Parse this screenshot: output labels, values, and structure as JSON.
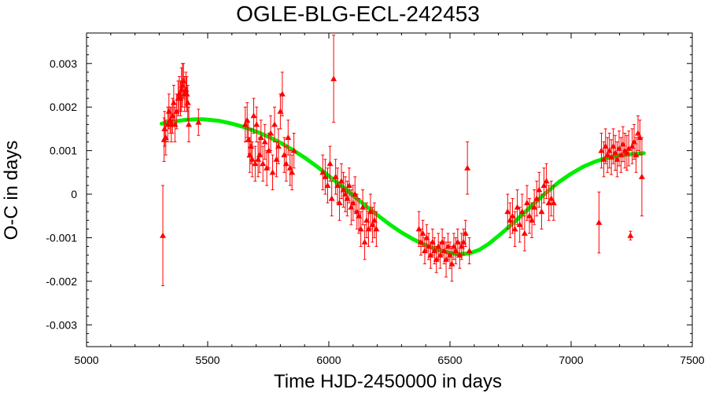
{
  "chart_data": {
    "type": "scatter",
    "title": "OGLE-BLG-ECL-242453",
    "xlabel": "Time HJD-2450000 in days",
    "ylabel": "O-C in days",
    "xlim": [
      5000,
      7500
    ],
    "ylim": [
      -0.0035,
      0.0037
    ],
    "xticks": [
      5000,
      5500,
      6000,
      6500,
      7000,
      7500
    ],
    "xtick_labels": [
      "5000",
      "5500",
      "6000",
      "6500",
      "7000",
      "7500"
    ],
    "yticks": [
      -0.003,
      -0.002,
      -0.001,
      0,
      0.001,
      0.002,
      0.003
    ],
    "ytick_labels": [
      "-0.003",
      "-0.002",
      "-0.001",
      "0",
      "0.001",
      "0.002",
      "0.003"
    ],
    "grid": false,
    "legend": "none",
    "colors": {
      "points": "#ff0000",
      "model": "#00ee00",
      "axes": "#000000"
    },
    "series": [
      {
        "kind": "points_with_errorbars",
        "x": [
          5315,
          5320,
          5322,
          5327,
          5335,
          5340,
          5345,
          5350,
          5355,
          5360,
          5365,
          5372,
          5378,
          5383,
          5388,
          5392,
          5396,
          5400,
          5405,
          5410,
          5414,
          5418,
          5422,
          5462,
          5655,
          5663,
          5668,
          5674,
          5679,
          5684,
          5690,
          5696,
          5702,
          5708,
          5714,
          5720,
          5728,
          5736,
          5744,
          5752,
          5760,
          5768,
          5776,
          5784,
          5792,
          5800,
          5808,
          5816,
          5824,
          5832,
          5840,
          5848,
          5856,
          5975,
          5985,
          5995,
          6005,
          6012,
          6020,
          6028,
          6036,
          6044,
          6052,
          6060,
          6068,
          6076,
          6084,
          6092,
          6100,
          6108,
          6116,
          6124,
          6132,
          6140,
          6148,
          6156,
          6164,
          6172,
          6180,
          6188,
          6196,
          6372,
          6380,
          6388,
          6396,
          6404,
          6412,
          6420,
          6428,
          6436,
          6444,
          6452,
          6460,
          6468,
          6476,
          6484,
          6492,
          6500,
          6508,
          6516,
          6524,
          6532,
          6540,
          6548,
          6556,
          6564,
          6572,
          6580,
          6738,
          6748,
          6758,
          6768,
          6778,
          6788,
          6798,
          6808,
          6818,
          6828,
          6838,
          6848,
          6858,
          6868,
          6878,
          6888,
          6898,
          6908,
          6918,
          6928,
          7115,
          7125,
          7135,
          7142,
          7150,
          7158,
          7166,
          7174,
          7182,
          7190,
          7198,
          7206,
          7214,
          7222,
          7230,
          7238,
          7245,
          7252,
          7260,
          7268,
          7276,
          7284,
          7292
        ],
        "y": [
          -0.00095,
          0.00125,
          0.0015,
          0.0013,
          0.0016,
          0.0019,
          0.0017,
          0.0016,
          0.0018,
          0.0021,
          0.0016,
          0.0019,
          0.0022,
          0.0023,
          0.0022,
          0.0024,
          0.0025,
          0.0026,
          0.0023,
          0.0024,
          0.0023,
          0.0021,
          0.0016,
          0.00165,
          0.0016,
          0.0017,
          0.00125,
          0.0009,
          0.0011,
          0.0008,
          0.0018,
          0.0007,
          0.0016,
          0.0008,
          0.0009,
          0.0013,
          0.0007,
          0.0012,
          0.0006,
          0.001,
          0.0014,
          0.0005,
          0.0016,
          0.0008,
          0.0011,
          0.0019,
          0.0023,
          0.0009,
          0.0007,
          0.0013,
          0.0006,
          0.0005,
          0.001,
          0.0005,
          0.0004,
          0.0002,
          0.0007,
          -0.0001,
          0.00265,
          0.0004,
          0.0002,
          -0.0002,
          0.0003,
          0.0001,
          0.0,
          -0.0001,
          0.0002,
          -0.0003,
          -0.0002,
          0.0,
          -0.0004,
          -0.0005,
          -0.0008,
          -0.0003,
          -0.0011,
          -0.0006,
          -0.0008,
          -0.0004,
          -0.0007,
          -0.0006,
          -0.0008,
          -0.0008,
          -0.0011,
          -0.0009,
          -0.0013,
          -0.001,
          -0.0012,
          -0.0014,
          -0.0011,
          -0.0013,
          -0.0015,
          -0.0012,
          -0.0014,
          -0.0011,
          -0.0013,
          -0.0015,
          -0.0012,
          -0.0014,
          -0.0016,
          -0.0012,
          -0.0013,
          -0.0011,
          -0.0014,
          -0.0012,
          -0.0011,
          -0.0009,
          0.0006,
          -0.0013,
          -0.0004,
          -0.0006,
          -0.0005,
          -0.0008,
          -0.0003,
          -0.0007,
          -0.0004,
          -0.0009,
          -0.0002,
          -0.0005,
          -0.0006,
          -0.0003,
          -0.0001,
          0.0001,
          -0.0004,
          0.0002,
          0.0003,
          -0.0002,
          -0.0001,
          -0.0002,
          -0.00065,
          0.001,
          0.0008,
          0.0011,
          0.0009,
          0.001,
          0.00085,
          0.0011,
          0.00095,
          0.0008,
          0.00105,
          0.0009,
          0.00115,
          0.001,
          0.00095,
          0.00105,
          -0.00095,
          0.0011,
          0.0012,
          0.0009,
          0.0014,
          0.0013,
          0.0004
        ],
        "err": [
          0.00115,
          0.0005,
          0.0004,
          0.0004,
          0.0004,
          0.0004,
          0.0003,
          0.0004,
          0.0004,
          0.0004,
          0.0004,
          0.0004,
          0.0004,
          0.0004,
          0.0004,
          0.0005,
          0.0005,
          0.0004,
          0.0004,
          0.0004,
          0.0004,
          0.0004,
          0.0004,
          0.0003,
          0.0004,
          0.0004,
          0.0004,
          0.0004,
          0.0004,
          0.0004,
          0.0004,
          0.0004,
          0.0004,
          0.0004,
          0.0004,
          0.0004,
          0.0004,
          0.0004,
          0.0004,
          0.0004,
          0.0004,
          0.0004,
          0.0004,
          0.0004,
          0.0004,
          0.0004,
          0.0005,
          0.0004,
          0.0004,
          0.0004,
          0.0004,
          0.0004,
          0.0004,
          0.0004,
          0.0004,
          0.0004,
          0.0004,
          0.0004,
          0.001,
          0.0004,
          0.0004,
          0.0004,
          0.0004,
          0.0004,
          0.0004,
          0.0004,
          0.0004,
          0.0004,
          0.0004,
          0.0004,
          0.0004,
          0.0004,
          0.0004,
          0.0004,
          0.0004,
          0.0004,
          0.0004,
          0.0004,
          0.0004,
          0.0004,
          0.0004,
          0.0004,
          0.0003,
          0.0003,
          0.0003,
          0.0003,
          0.0003,
          0.0003,
          0.0003,
          0.0003,
          0.0003,
          0.0003,
          0.0003,
          0.0003,
          0.0003,
          0.0004,
          0.0003,
          0.0003,
          0.0004,
          0.0003,
          0.0003,
          0.0003,
          0.0003,
          0.0003,
          0.0003,
          0.0003,
          0.0006,
          0.0003,
          0.0004,
          0.0004,
          0.0004,
          0.0004,
          0.0004,
          0.0004,
          0.0004,
          0.0004,
          0.0004,
          0.0004,
          0.0004,
          0.0004,
          0.0004,
          0.0004,
          0.0004,
          0.0004,
          0.0004,
          0.0004,
          0.0004,
          0.0004,
          0.0007,
          0.0004,
          0.0004,
          0.0004,
          0.0004,
          0.0004,
          0.0004,
          0.0004,
          0.0004,
          0.0004,
          0.0004,
          0.0004,
          0.0004,
          0.0004,
          0.0004,
          0.0004,
          0.0001,
          0.0004,
          0.0004,
          0.0004,
          0.0004,
          0.0004,
          0.0009
        ]
      },
      {
        "kind": "model_curve",
        "x": [
          5310,
          5350,
          5400,
          5450,
          5480,
          5500,
          5550,
          5600,
          5650,
          5700,
          5750,
          5800,
          5850,
          5900,
          5950,
          6000,
          6050,
          6100,
          6150,
          6200,
          6250,
          6300,
          6350,
          6400,
          6450,
          6500,
          6540,
          6580,
          6620,
          6660,
          6700,
          6750,
          6800,
          6850,
          6900,
          6950,
          7000,
          7050,
          7100,
          7150,
          7200,
          7250,
          7300
        ],
        "y": [
          0.00162,
          0.00166,
          0.0017,
          0.00172,
          0.00172,
          0.00171,
          0.00168,
          0.00162,
          0.00154,
          0.00144,
          0.00132,
          0.00118,
          0.00102,
          0.00084,
          0.00064,
          0.00042,
          0.0002,
          -3e-05,
          -0.00026,
          -0.00048,
          -0.00069,
          -0.00088,
          -0.00104,
          -0.00117,
          -0.00128,
          -0.00135,
          -0.00138,
          -0.00136,
          -0.00128,
          -0.00114,
          -0.00096,
          -0.00072,
          -0.00046,
          -0.0002,
          5e-05,
          0.00028,
          0.00047,
          0.00063,
          0.00075,
          0.00084,
          0.00089,
          0.00092,
          0.00094
        ]
      }
    ]
  }
}
